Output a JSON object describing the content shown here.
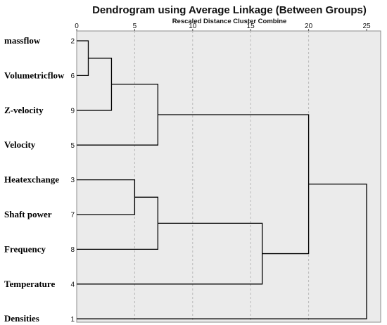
{
  "chart_data": {
    "type": "dendrogram",
    "title": "Dendrogram using Average Linkage (Between Groups)",
    "subtitle": "Rescaled Distance Cluster Combine",
    "x_ticks": [
      0,
      5,
      10,
      15,
      20,
      25
    ],
    "xlim": [
      0,
      25
    ],
    "grid": true,
    "leaves": [
      {
        "name": "massflow",
        "case": 2
      },
      {
        "name": "Volumetricflow",
        "case": 6
      },
      {
        "name": "Z-velocity",
        "case": 9
      },
      {
        "name": "Velocity",
        "case": 5
      },
      {
        "name": "Heatexchange",
        "case": 3
      },
      {
        "name": "Shaft power",
        "case": 7
      },
      {
        "name": "Frequency",
        "case": 8
      },
      {
        "name": "Temperature",
        "case": 4
      },
      {
        "name": "Densities",
        "case": 1
      }
    ],
    "merges": [
      {
        "children": [
          "L0",
          "L1"
        ],
        "distance": 1
      },
      {
        "children": [
          "N0",
          "L2"
        ],
        "distance": 3
      },
      {
        "children": [
          "L4",
          "L5"
        ],
        "distance": 5
      },
      {
        "children": [
          "N1",
          "L3"
        ],
        "distance": 7
      },
      {
        "children": [
          "N2",
          "L6"
        ],
        "distance": 7
      },
      {
        "children": [
          "N4",
          "L7"
        ],
        "distance": 16
      },
      {
        "children": [
          "N3",
          "N5"
        ],
        "distance": 20
      },
      {
        "children": [
          "N6",
          "L8"
        ],
        "distance": 25
      }
    ]
  }
}
